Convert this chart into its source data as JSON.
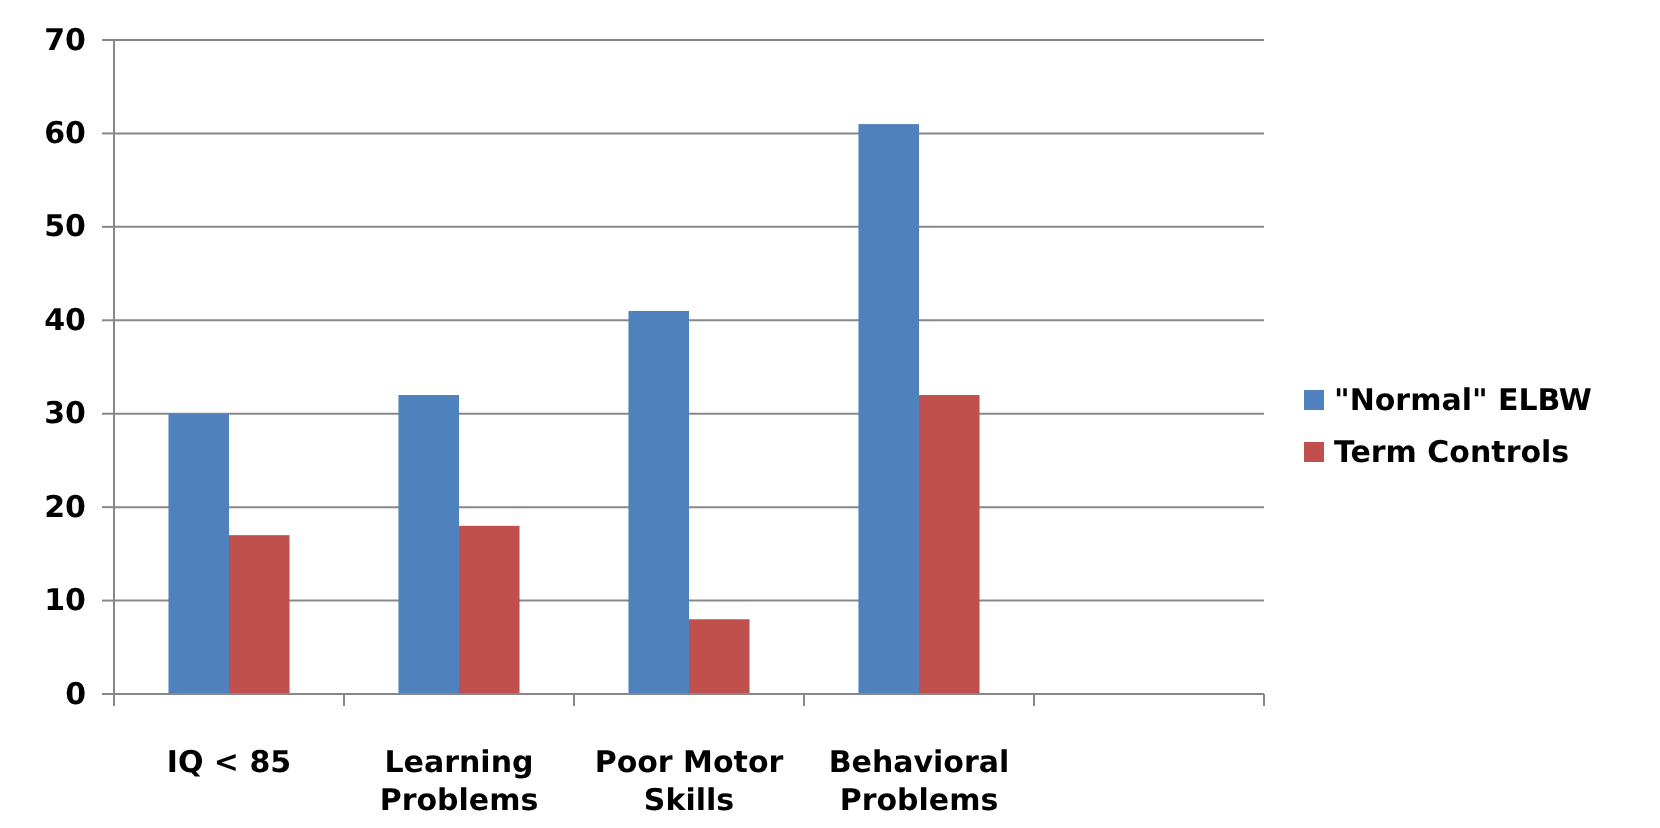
{
  "chart_data": {
    "type": "bar",
    "categories": [
      "IQ < 85",
      "Learning Problems",
      "Poor Motor Skills",
      "Behavioral Problems",
      null
    ],
    "series": [
      {
        "name": "\"Normal\" ELBW",
        "color": "#4f81bd",
        "values": [
          30,
          32,
          41,
          61,
          null
        ]
      },
      {
        "name": "Term Controls",
        "color": "#c0504d",
        "values": [
          17,
          18,
          8,
          32,
          null
        ]
      }
    ],
    "ylim": [
      0,
      70
    ],
    "yticks": [
      0,
      10,
      20,
      30,
      40,
      50,
      60,
      70
    ],
    "grid": "y",
    "legend": "right"
  }
}
